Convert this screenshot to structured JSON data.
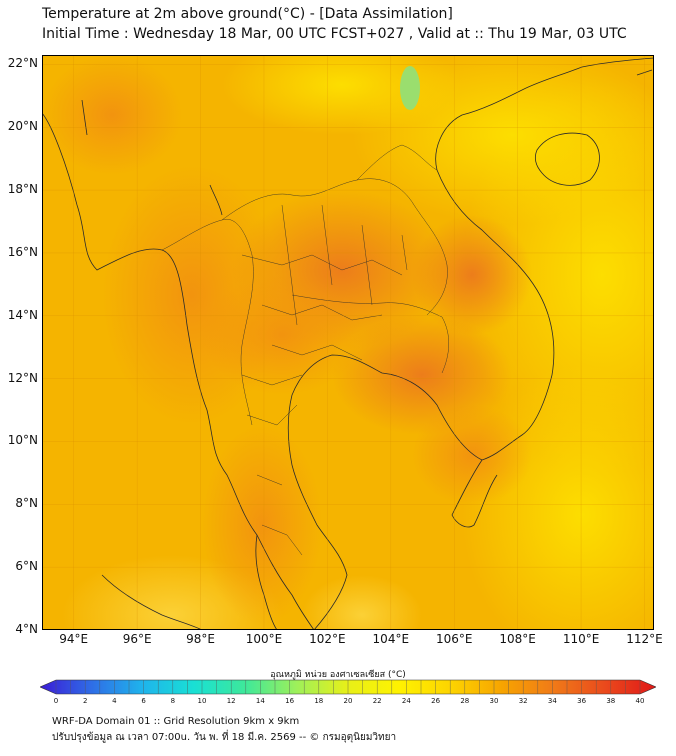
{
  "header": {
    "title_line1": "Temperature at 2m above ground(°C) - [Data Assimilation]",
    "title_line2": "Initial Time : Wednesday 18 Mar, 00 UTC FCST+027 , Valid at :: Thu 19 Mar, 03 UTC"
  },
  "map": {
    "lat_range": [
      4,
      22.3
    ],
    "lon_range": [
      93,
      112.3
    ],
    "lat_labels": [
      "22°N",
      "20°N",
      "18°N",
      "16°N",
      "14°N",
      "12°N",
      "10°N",
      "8°N",
      "6°N",
      "4°N"
    ],
    "lat_values": [
      22,
      20,
      18,
      16,
      14,
      12,
      10,
      8,
      6,
      4
    ],
    "lon_labels": [
      "94°E",
      "96°E",
      "98°E",
      "100°E",
      "102°E",
      "104°E",
      "106°E",
      "108°E",
      "110°E",
      "112°E"
    ],
    "lon_values": [
      94,
      96,
      98,
      100,
      102,
      104,
      106,
      108,
      110,
      112
    ],
    "field_colors": {
      "base": "#f5b400",
      "warm": "#f29010",
      "hot": "#ec7a1c",
      "cool": "#fde000",
      "cold": "#8fe07a"
    }
  },
  "colorbar": {
    "title": "อุณหภูมิ หน่วย องศาเซลเซียส (°C)",
    "min": 0,
    "max": 40,
    "tick_labels": [
      "0",
      "2",
      "4",
      "6",
      "8",
      "10",
      "12",
      "14",
      "16",
      "18",
      "20",
      "22",
      "24",
      "26",
      "28",
      "30",
      "32",
      "34",
      "36",
      "38",
      "40"
    ],
    "tick_values": [
      0,
      2,
      4,
      6,
      8,
      10,
      12,
      14,
      16,
      18,
      20,
      22,
      24,
      26,
      28,
      30,
      32,
      34,
      36,
      38,
      40
    ],
    "colors": [
      "#3b1cd6",
      "#2f6de6",
      "#1fb4ec",
      "#19e0d4",
      "#3ee89a",
      "#9ef05a",
      "#e8f018",
      "#fff200",
      "#fdd400",
      "#f7a400",
      "#f07a18",
      "#ea4a1c",
      "#e01818"
    ]
  },
  "footer": {
    "line1": "WRF-DA Domain 01 :: Grid Resolution 9km x 9km",
    "line2": "ปรับปรุงข้อมูล ณ เวลา 07:00u. วัน พ. ที่ 18 มี.ค. 2569 -- © กรมอุตุนิยมวิทยา"
  }
}
